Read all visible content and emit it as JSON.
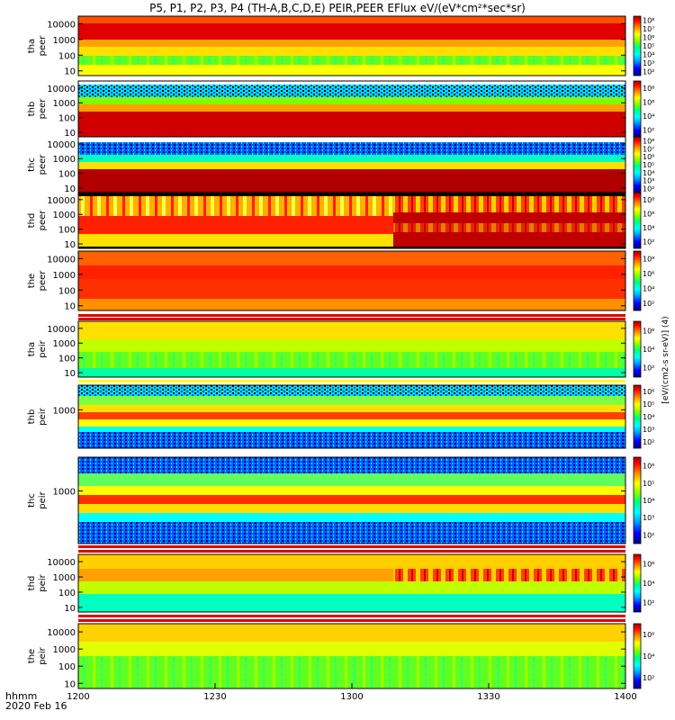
{
  "figure": {
    "title": "P5, P1, P2, P3, P4 (TH-A,B,C,D,E) PEIR,PEER EFlux eV/(eV*cm²*sec*sr)",
    "time_label": "hhmm",
    "date_label": "2020 Feb 16"
  },
  "chart_data": {
    "type": "heatmap",
    "title": "P5, P1, P2, P3, P4 (TH-A,B,C,D,E) PEIR,PEER EFlux eV/(eV*cm²*sec*sr)",
    "x_ticks": [
      "1200",
      "1230",
      "1300",
      "1330",
      "1400"
    ],
    "x_range": [
      "12:00",
      "14:00"
    ],
    "colorbar_label": "[eV/(cm2-s sr-eV)] (4)",
    "colorbar_scale": "log",
    "colormap": [
      "#000080",
      "#0000ff",
      "#00a0ff",
      "#00ffff",
      "#00ff80",
      "#80ff00",
      "#ffff00",
      "#ff8000",
      "#ff0000",
      "#a00000"
    ],
    "panels": [
      {
        "id": "tha-peer",
        "label": "tha",
        "sublabel": "peer",
        "yscale": "log",
        "y_ticks": [
          "10",
          "100",
          "1000",
          "10000"
        ],
        "y_range": [
          5,
          30000
        ],
        "cbar_ticks": [
          "10²",
          "10³",
          "10⁴",
          "10⁵",
          "10⁶",
          "10⁷",
          "10⁸"
        ]
      },
      {
        "id": "thb-peer",
        "label": "thb",
        "sublabel": "peer",
        "yscale": "log",
        "y_ticks": [
          "10",
          "100",
          "1000",
          "10000"
        ],
        "y_range": [
          5,
          30000
        ],
        "cbar_ticks": [
          "10²",
          "10⁴",
          "10⁶",
          "10⁸"
        ]
      },
      {
        "id": "thc-peer",
        "label": "thc",
        "sublabel": "peer",
        "yscale": "log",
        "y_ticks": [
          "10",
          "100",
          "1000",
          "10000"
        ],
        "y_range": [
          5,
          30000
        ],
        "cbar_ticks": [
          "10²",
          "10³",
          "10⁴",
          "10⁵",
          "10⁶",
          "10⁷",
          "10⁸"
        ]
      },
      {
        "id": "thd-peer",
        "label": "thd",
        "sublabel": "peer",
        "yscale": "log",
        "y_ticks": [
          "10",
          "100",
          "1000",
          "10000"
        ],
        "y_range": [
          5,
          30000
        ],
        "cbar_ticks": [
          "10²",
          "10⁴",
          "10⁶",
          "10⁸"
        ]
      },
      {
        "id": "the-peer",
        "label": "the",
        "sublabel": "peer",
        "yscale": "log",
        "y_ticks": [
          "10",
          "100",
          "1000",
          "10000"
        ],
        "y_range": [
          5,
          30000
        ],
        "cbar_ticks": [
          "10²",
          "10⁴",
          "10⁶",
          "10⁸"
        ]
      },
      {
        "id": "tha-peir",
        "label": "tha",
        "sublabel": "peir",
        "yscale": "log",
        "y_ticks": [
          "10",
          "100",
          "1000",
          "10000"
        ],
        "y_range": [
          5,
          30000
        ],
        "cbar_ticks": [
          "10²",
          "10⁴",
          "10⁶"
        ]
      },
      {
        "id": "thb-peir",
        "label": "thb",
        "sublabel": "peir",
        "yscale": "log",
        "y_ticks": [
          "1000"
        ],
        "y_range": [
          5,
          30000
        ],
        "cbar_ticks": [
          "10²",
          "10³",
          "10⁴",
          "10⁵",
          "10⁶"
        ]
      },
      {
        "id": "thc-peir",
        "label": "thc",
        "sublabel": "peir",
        "yscale": "log",
        "y_ticks": [
          "1000"
        ],
        "y_range": [
          5,
          30000
        ],
        "cbar_ticks": [
          "10²",
          "10³",
          "10⁴",
          "10⁵",
          "10⁶"
        ]
      },
      {
        "id": "thd-peir",
        "label": "thd",
        "sublabel": "peir",
        "yscale": "log",
        "y_ticks": [
          "10",
          "100",
          "1000",
          "10000"
        ],
        "y_range": [
          5,
          30000
        ],
        "cbar_ticks": [
          "10²",
          "10⁴",
          "10⁶"
        ]
      },
      {
        "id": "the-peir",
        "label": "the",
        "sublabel": "peir",
        "yscale": "log",
        "y_ticks": [
          "10",
          "100",
          "1000",
          "10000"
        ],
        "y_range": [
          5,
          30000
        ],
        "cbar_ticks": [
          "10²",
          "10⁴",
          "10⁶"
        ]
      }
    ]
  }
}
